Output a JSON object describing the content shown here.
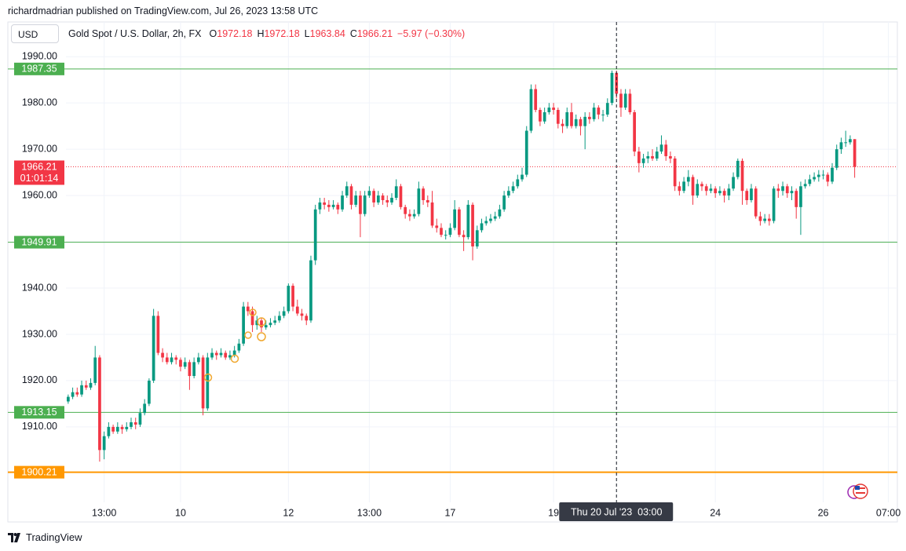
{
  "header": {
    "byline": "richardmadrian published on TradingView.com, Jul 26, 2023 13:58 UTC",
    "currency": "USD"
  },
  "legend": {
    "symbol": "Gold Spot / U.S. Dollar, 2h, FX",
    "ohlc": [
      {
        "label": "O",
        "value": 1972.18
      },
      {
        "label": "H",
        "value": 1972.18
      },
      {
        "label": "L",
        "value": 1963.84
      },
      {
        "label": "C",
        "value": 1966.21
      }
    ],
    "change": "−5.97 (−0.30%)"
  },
  "chart_data": {
    "type": "candlestick",
    "up_color": "#089981",
    "down_color": "#f23645",
    "grid": true,
    "xlim": [
      -0.5,
      184.5
    ],
    "ylim": [
      1893.7,
      1997.5
    ],
    "yticks": [
      {
        "value": 1990,
        "label": "1990.00"
      },
      {
        "value": 1980,
        "label": "1980.00"
      },
      {
        "value": 1970,
        "label": "1970.00"
      },
      {
        "value": 1960,
        "label": "1960.00"
      },
      {
        "value": 1950,
        "label": "1950.00"
      },
      {
        "value": 1940,
        "label": "1940.00"
      },
      {
        "value": 1930,
        "label": "1930.00"
      },
      {
        "value": 1920,
        "label": "1920.00"
      },
      {
        "value": 1910,
        "label": "1910.00"
      }
    ],
    "xticks": [
      {
        "value": 8,
        "label": "13:00"
      },
      {
        "value": 25,
        "label": "10"
      },
      {
        "value": 49,
        "label": "12"
      },
      {
        "value": 67,
        "label": "13:00"
      },
      {
        "value": 85,
        "label": "17"
      },
      {
        "value": 108,
        "label": "19"
      },
      {
        "value": 144,
        "label": "24"
      },
      {
        "value": 168,
        "label": "26"
      },
      {
        "value": 182.5,
        "label": "07:00"
      }
    ],
    "open": [
      1915.5,
      1916.5,
      1917.5,
      1917,
      1919,
      1918.5,
      1919.5,
      1925,
      1905,
      1908,
      1910,
      1909,
      1910,
      1909.5,
      1910,
      1911,
      1910.5,
      1913,
      1915,
      1920,
      1934,
      1926,
      1925,
      1924,
      1925,
      1924.5,
      1923,
      1924,
      1921,
      1924,
      1925,
      1914,
      1925,
      1926,
      1925.5,
      1926,
      1925,
      1925.5,
      1926.5,
      1928,
      1936,
      1935,
      1932,
      1933,
      1931.5,
      1932,
      1932.5,
      1933,
      1934,
      1935,
      1940.5,
      1936,
      1934.5,
      1934,
      1933,
      1946,
      1957,
      1958.5,
      1958,
      1957.5,
      1958,
      1957,
      1960,
      1962,
      1958,
      1960,
      1956,
      1960,
      1961,
      1958.5,
      1960,
      1959,
      1958.5,
      1959.5,
      1962,
      1957.5,
      1956,
      1955.5,
      1956,
      1961.5,
      1959,
      1958.5,
      1953.5,
      1953,
      1951.5,
      1951.5,
      1953,
      1957,
      1951.5,
      1951,
      1958,
      1949,
      1952.5,
      1954,
      1954.5,
      1955,
      1955.5,
      1957,
      1960,
      1961,
      1962,
      1963.5,
      1964.5,
      1974,
      1983,
      1978.5,
      1976,
      1978,
      1979,
      1978.5,
      1975.5,
      1975,
      1978,
      1975,
      1976.5,
      1975,
      1977,
      1976.5,
      1979,
      1977.5,
      1977.5,
      1980,
      1986.5,
      1982,
      1979,
      1982,
      1978,
      1969.5,
      1967,
      1968,
      1968.5,
      1968,
      1969.5,
      1971,
      1968.5,
      1968,
      1962,
      1961,
      1963,
      1964,
      1960,
      1962.5,
      1962,
      1961,
      1961.5,
      1960.5,
      1961,
      1960,
      1961.5,
      1964,
      1967.5,
      1961,
      1959,
      1961.5,
      1955.5,
      1954.5,
      1955,
      1954.5,
      1961.5,
      1961,
      1962,
      1960.5,
      1961,
      1957.5,
      1962,
      1962.5,
      1963.5,
      1964,
      1964.5,
      1964.5,
      1963,
      1966,
      1970,
      1971.5,
      1971.5,
      1972.18
    ],
    "high": [
      1917,
      1918.5,
      1918.5,
      1920,
      1920,
      1920.5,
      1927.5,
      1925.5,
      1909,
      1911,
      1910.5,
      1911,
      1910.5,
      1911,
      1912,
      1912,
      1914,
      1916,
      1920.5,
      1935.5,
      1935,
      1927,
      1926,
      1926,
      1925.5,
      1925,
      1925,
      1924.5,
      1925,
      1926,
      1925.5,
      1926,
      1927,
      1926.5,
      1927,
      1926.5,
      1926.5,
      1927.5,
      1929,
      1937,
      1937,
      1936,
      1934,
      1933.5,
      1933,
      1933.5,
      1934,
      1935,
      1936,
      1941,
      1941,
      1937.5,
      1935.5,
      1934.5,
      1947,
      1958,
      1959.5,
      1959.5,
      1959,
      1959,
      1958.5,
      1961,
      1963,
      1962.5,
      1961,
      1961,
      1961,
      1962,
      1961.5,
      1961,
      1960.5,
      1960,
      1960.5,
      1963.5,
      1962.5,
      1958,
      1957,
      1957,
      1963,
      1962,
      1960,
      1961,
      1955,
      1954,
      1952.5,
      1954,
      1959,
      1957.5,
      1952.5,
      1959,
      1958.5,
      1953.5,
      1955,
      1955.5,
      1956,
      1956.5,
      1958,
      1961,
      1962,
      1963,
      1964.5,
      1966,
      1975,
      1984,
      1984,
      1979,
      1979,
      1980,
      1980,
      1979,
      1976.5,
      1979,
      1980,
      1977.5,
      1977,
      1978,
      1978,
      1980,
      1979.5,
      1978.5,
      1981,
      1987,
      1987,
      1983,
      1983,
      1983,
      1978.5,
      1970.5,
      1969,
      1969.5,
      1970,
      1970.5,
      1973,
      1972,
      1969.5,
      1968.5,
      1963,
      1964,
      1965.5,
      1964.5,
      1963.5,
      1963,
      1962.5,
      1962.5,
      1962,
      1962,
      1961.5,
      1962.5,
      1965,
      1968,
      1968,
      1961.5,
      1962.5,
      1962,
      1956.5,
      1956,
      1956,
      1962,
      1962.5,
      1963,
      1962.5,
      1962,
      1961.5,
      1963,
      1963.5,
      1964.5,
      1965,
      1965.5,
      1965.5,
      1965,
      1967,
      1971,
      1972.5,
      1974,
      1973,
      1972.18
    ],
    "low": [
      1915,
      1916,
      1916.5,
      1916.5,
      1918,
      1918,
      1919,
      1902.5,
      1903,
      1907.5,
      1908.5,
      1908.5,
      1908.5,
      1909,
      1909.5,
      1909.5,
      1910,
      1912.5,
      1914.5,
      1919.5,
      1925.5,
      1924,
      1923.5,
      1923.5,
      1923.5,
      1922,
      1922.5,
      1918,
      1920.5,
      1923.5,
      1912.5,
      1913.5,
      1924.5,
      1924.5,
      1925,
      1924.5,
      1924.5,
      1925,
      1926,
      1927.5,
      1934,
      1930.5,
      1931,
      1930.5,
      1931,
      1931.5,
      1932,
      1932.5,
      1933.5,
      1934.5,
      1935,
      1934,
      1933,
      1932,
      1932.5,
      1945,
      1956,
      1957,
      1956.5,
      1957,
      1956,
      1956.5,
      1959.5,
      1957,
      1957.5,
      1951,
      1955.5,
      1959.5,
      1957.5,
      1958,
      1958,
      1957.5,
      1958,
      1959,
      1957,
      1955,
      1954.5,
      1955,
      1955.5,
      1958,
      1957.5,
      1953,
      1952,
      1951,
      1950.5,
      1951,
      1952.5,
      1951,
      1948,
      1950.5,
      1946,
      1948.5,
      1952,
      1953.5,
      1954,
      1954.5,
      1955,
      1956.5,
      1959.5,
      1960.5,
      1961.5,
      1963,
      1964,
      1973.5,
      1978,
      1975,
      1975.5,
      1977.5,
      1977.5,
      1974.5,
      1973.5,
      1974.5,
      1974.5,
      1974.5,
      1973,
      1970,
      1975.5,
      1976,
      1976.5,
      1976,
      1977,
      1979.5,
      1981,
      1977,
      1978.5,
      1977.5,
      1968.5,
      1965,
      1966,
      1967,
      1967.5,
      1967.5,
      1969,
      1967.5,
      1967,
      1961,
      1960,
      1960.5,
      1962,
      1958,
      1959.5,
      1961,
      1960,
      1960.5,
      1959.5,
      1960,
      1958.5,
      1959,
      1961,
      1963.5,
      1958,
      1958,
      1958.5,
      1955,
      1953.5,
      1954,
      1953.5,
      1954,
      1959.5,
      1960,
      1959.5,
      1959,
      1955,
      1951.5,
      1961.5,
      1962,
      1963,
      1963,
      1963.5,
      1962,
      1962.5,
      1965.5,
      1969,
      1970.5,
      1971,
      1963.84
    ],
    "close": [
      1916.5,
      1917.5,
      1917,
      1919,
      1918.5,
      1919.5,
      1925,
      1905,
      1908,
      1910,
      1909,
      1910,
      1909.5,
      1910,
      1911,
      1910.5,
      1913,
      1915,
      1920,
      1934,
      1926,
      1925,
      1924,
      1925,
      1924.5,
      1923,
      1924,
      1921,
      1924,
      1925,
      1914,
      1925,
      1926,
      1925.5,
      1926,
      1925,
      1925.5,
      1926.5,
      1928,
      1936,
      1935,
      1932,
      1933,
      1931.5,
      1932,
      1932.5,
      1933,
      1934,
      1935,
      1940.5,
      1936,
      1934.5,
      1934,
      1933,
      1946,
      1957,
      1958.5,
      1958,
      1957.5,
      1958,
      1957,
      1960,
      1962,
      1958,
      1960,
      1956,
      1960,
      1961,
      1958.5,
      1960,
      1959,
      1958.5,
      1959.5,
      1962,
      1957.5,
      1956,
      1955.5,
      1956,
      1961.5,
      1959,
      1958.5,
      1953.5,
      1953,
      1951.5,
      1951.5,
      1953,
      1957,
      1951.5,
      1951,
      1958,
      1949,
      1952.5,
      1954,
      1954.5,
      1955,
      1955.5,
      1957,
      1960,
      1961,
      1962,
      1963.5,
      1964.5,
      1974,
      1983,
      1978.5,
      1976,
      1978,
      1979,
      1978.5,
      1975.5,
      1975,
      1978,
      1975,
      1976.5,
      1975,
      1977,
      1976.5,
      1979,
      1977.5,
      1977.5,
      1980,
      1986.5,
      1982,
      1979,
      1982,
      1978,
      1969.5,
      1967,
      1968,
      1968.5,
      1968,
      1969.5,
      1971,
      1968.5,
      1968,
      1962,
      1961,
      1963,
      1964,
      1960,
      1962.5,
      1962,
      1961,
      1961.5,
      1960.5,
      1961,
      1960,
      1961.5,
      1964,
      1967.5,
      1961,
      1959,
      1961.5,
      1955.5,
      1954.5,
      1955,
      1954.5,
      1961.5,
      1961,
      1962,
      1960.5,
      1961,
      1957.5,
      1962,
      1962.5,
      1963.5,
      1964,
      1964.5,
      1964.5,
      1963,
      1966,
      1970,
      1971.5,
      1971.5,
      1972.18,
      1966.21
    ],
    "levels": [
      {
        "value": 1987.35,
        "color": "#4caf50",
        "width": 1
      },
      {
        "value": 1949.91,
        "color": "#4caf50",
        "width": 1
      },
      {
        "value": 1913.15,
        "color": "#4caf50",
        "width": 1
      },
      {
        "value": 1900.21,
        "color": "#ff9800",
        "width": 2
      }
    ],
    "last_price": {
      "value": 1966.21,
      "countdown": "01:01:14",
      "color": "#f23645"
    },
    "crosshair": {
      "x": 122,
      "label": "Thu 20 Jul '23  03:00"
    }
  },
  "footer": {
    "brand": "TradingView"
  }
}
